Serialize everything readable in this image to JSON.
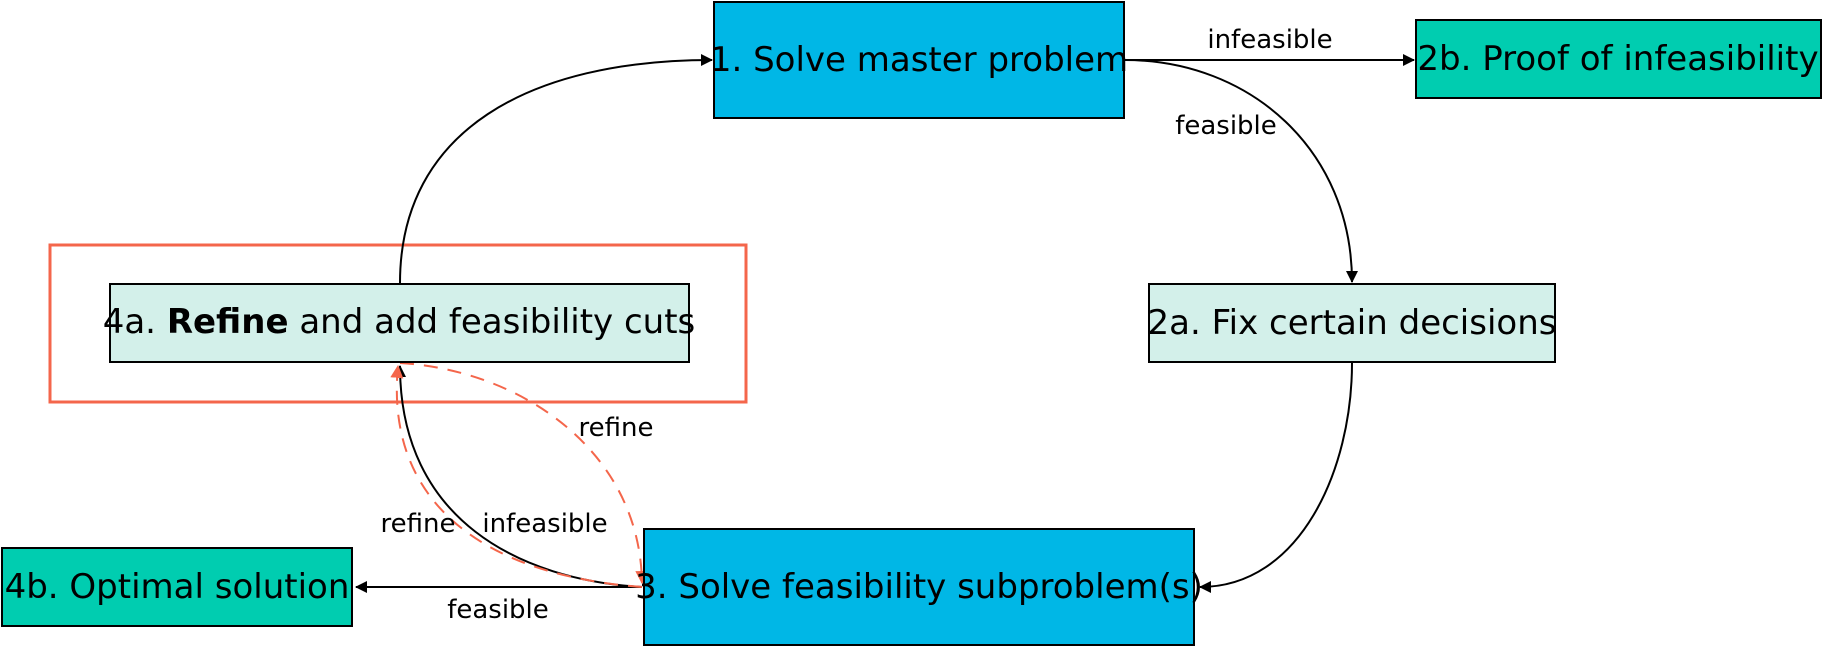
{
  "colors": {
    "master_fill": "#00B7E6",
    "terminal_fill": "#00CDB0",
    "step_fill": "#D3F0EA",
    "highlight": "#F4664B",
    "line": "#000000"
  },
  "nodes": {
    "solve_master": {
      "label": "1. Solve master problem"
    },
    "proof_infeasibility": {
      "label": "2b. Proof of infeasibility"
    },
    "fix_decisions": {
      "label": "2a. Fix certain decisions"
    },
    "solve_feasibility": {
      "label": "3. Solve feasibility subproblem(s)"
    },
    "refine_cuts": {
      "label_prefix": "4a. ",
      "label_bold": "Refine",
      "label_suffix": " and add feasibility cuts"
    },
    "optimal_solution": {
      "label": "4b. Optimal solution"
    }
  },
  "edges": {
    "master_to_proof": {
      "label": "infeasible"
    },
    "master_to_fix": {
      "label": "feasible"
    },
    "feasibility_to_refine": {
      "label": "infeasible"
    },
    "feasibility_to_optimal": {
      "label": "feasible"
    },
    "refine_loop_outer": {
      "label": "refine"
    },
    "refine_loop_inner": {
      "label": "refine"
    }
  }
}
